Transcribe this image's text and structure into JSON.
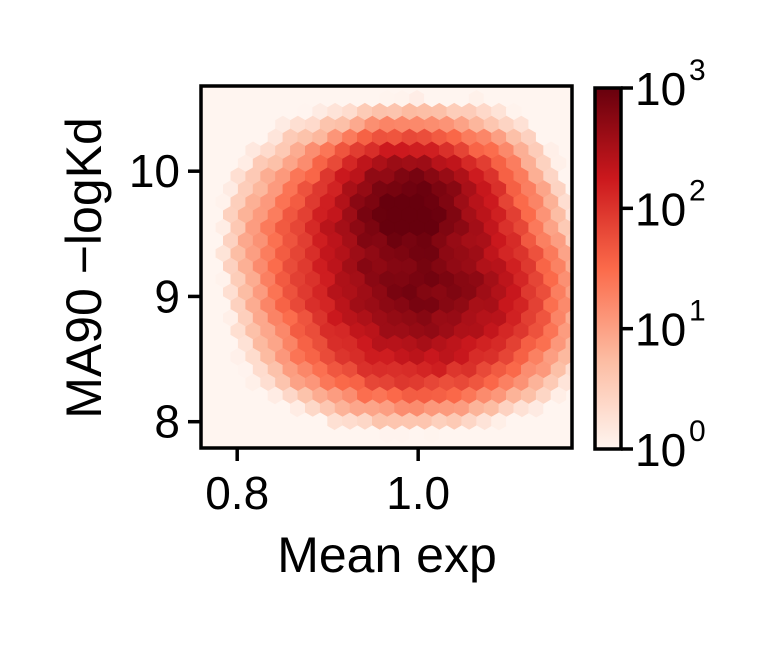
{
  "chart_data": {
    "type": "heatmap",
    "subtype": "hexbin",
    "title": "",
    "xlabel": "Mean exp",
    "ylabel": "MA90 −logKd",
    "xlim": [
      0.76,
      1.17
    ],
    "ylim": [
      7.79,
      10.68
    ],
    "xticks": [
      0.8,
      1.0
    ],
    "xtick_labels": [
      "0.8",
      "1.0"
    ],
    "yticks": [
      8,
      9,
      10
    ],
    "ytick_labels": [
      "8",
      "9",
      "10"
    ],
    "colormap": "Reds",
    "colorbar": {
      "scale": "log",
      "range": [
        1,
        1000
      ],
      "ticks": [
        {
          "value": 1,
          "base": "10",
          "exp": "0"
        },
        {
          "value": 10,
          "base": "10",
          "exp": "1"
        },
        {
          "value": 100,
          "base": "10",
          "exp": "2"
        },
        {
          "value": 1000,
          "base": "10",
          "exp": "3"
        }
      ],
      "colors": [
        "#fff5f0",
        "#fcbba1",
        "#fb6a4a",
        "#cb181d",
        "#67000d"
      ]
    },
    "density_components": [
      {
        "x": 0.99,
        "y": 9.75,
        "sx": 0.04,
        "sy": 0.22,
        "count": 900
      },
      {
        "x": 0.98,
        "y": 9.45,
        "sx": 0.05,
        "sy": 0.3,
        "count": 350
      },
      {
        "x": 1.02,
        "y": 9.0,
        "sx": 0.055,
        "sy": 0.26,
        "count": 420
      },
      {
        "x": 0.97,
        "y": 9.1,
        "sx": 0.055,
        "sy": 0.35,
        "count": 200
      },
      {
        "x": 1.0,
        "y": 8.55,
        "sx": 0.06,
        "sy": 0.2,
        "count": 110
      },
      {
        "x": 1.07,
        "y": 9.4,
        "sx": 0.03,
        "sy": 0.38,
        "count": 90
      },
      {
        "x": 0.89,
        "y": 9.4,
        "sx": 0.035,
        "sy": 0.42,
        "count": 22
      },
      {
        "x": 0.84,
        "y": 9.6,
        "sx": 0.03,
        "sy": 0.3,
        "count": 5
      },
      {
        "x": 1.12,
        "y": 9.4,
        "sx": 0.025,
        "sy": 0.4,
        "count": 6
      }
    ]
  }
}
